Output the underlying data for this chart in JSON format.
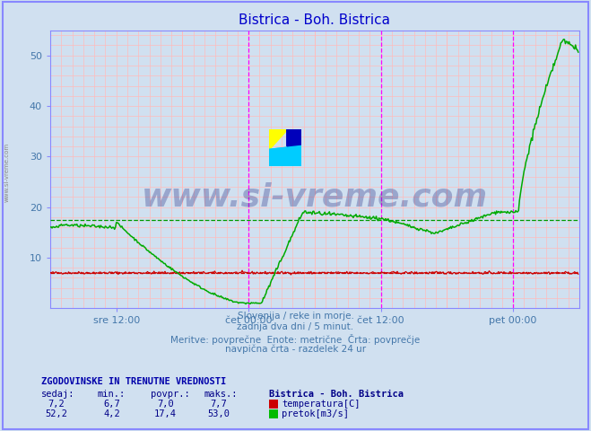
{
  "title": "Bistrica - Boh. Bistrica",
  "title_color": "#0000cc",
  "bg_color": "#d0e0f0",
  "plot_bg_color": "#d0e0f0",
  "xlim": [
    0,
    576
  ],
  "ylim": [
    0,
    55
  ],
  "yticks": [
    10,
    20,
    30,
    40,
    50
  ],
  "x_tick_labels": [
    "sre 12:00",
    "čet 00:00",
    "čet 12:00",
    "pet 00:00"
  ],
  "x_tick_positions": [
    72,
    216,
    360,
    504
  ],
  "grid_color": "#ffbbbb",
  "axis_color": "#8888ff",
  "temp_avg": 7.0,
  "flow_avg": 17.4,
  "temp_color": "#cc0000",
  "flow_color": "#00aa00",
  "avg_line_temp_color": "#cc0000",
  "avg_line_flow_color": "#009900",
  "vline_color": "#ff00ff",
  "vline_positions": [
    216,
    360,
    504
  ],
  "watermark": "www.si-vreme.com",
  "watermark_color": "#1a237e",
  "watermark_alpha": 0.3,
  "subtitle_lines": [
    "Slovenija / reke in morje.",
    "zadnja dva dni / 5 minut.",
    "Meritve: povprečne  Enote: metrične  Črta: povprečje",
    "navpična črta - razdelek 24 ur"
  ],
  "subtitle_color": "#4477aa",
  "table_header": "ZGODOVINSKE IN TRENUTNE VREDNOSTI",
  "table_header_color": "#0000aa",
  "col_labels": [
    "sedaj:",
    "min.:",
    "povpr.:",
    "maks.:"
  ],
  "station_label": "Bistrica - Boh. Bistrica",
  "temp_row": [
    "7,2",
    "6,7",
    "7,0",
    "7,7"
  ],
  "flow_row": [
    "52,2",
    "4,2",
    "17,4",
    "53,0"
  ],
  "temp_label": "temperatura[C]",
  "flow_label": "pretok[m3/s]",
  "table_color": "#000088",
  "sidebar_text": "www.si-vreme.com"
}
